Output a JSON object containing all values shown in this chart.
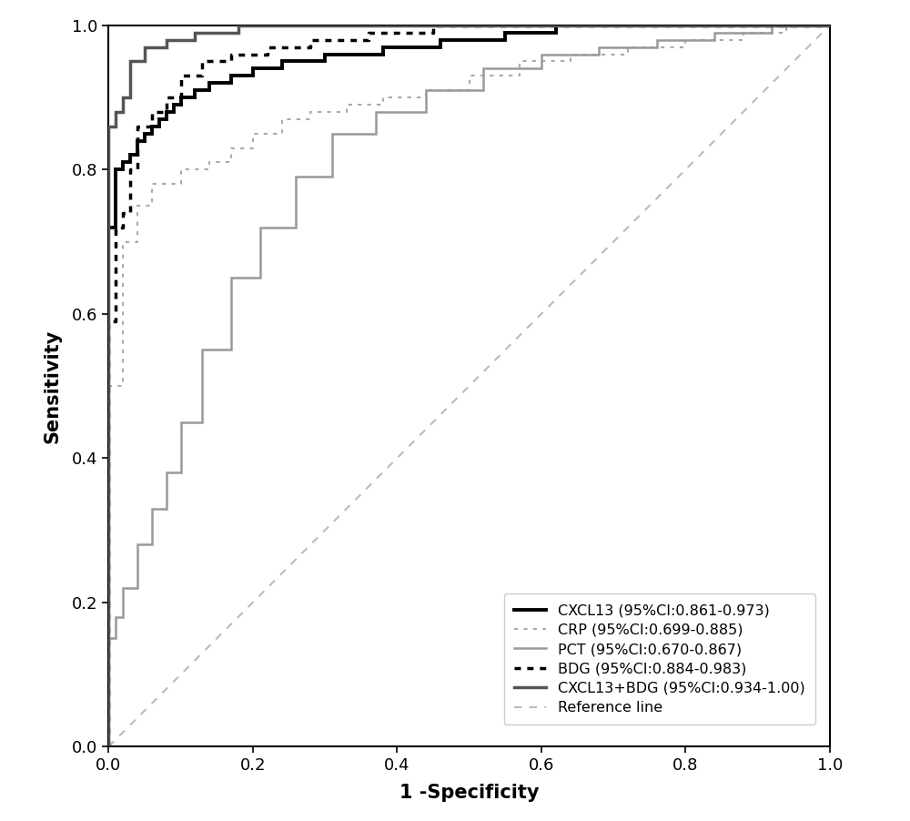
{
  "xlabel": "1 -Specificity",
  "ylabel": "Sensitivity",
  "xlim": [
    0.0,
    1.0
  ],
  "ylim": [
    0.0,
    1.0
  ],
  "xticks": [
    0.0,
    0.2,
    0.4,
    0.6,
    0.8,
    1.0
  ],
  "yticks": [
    0.0,
    0.2,
    0.4,
    0.6,
    0.8,
    1.0
  ],
  "xlabel_fontsize": 15,
  "ylabel_fontsize": 15,
  "tick_fontsize": 13,
  "legend_fontsize": 11.5,
  "background_color": "#ffffff",
  "curves": {
    "CXCL13": {
      "label": "CXCL13 (95%CI:0.861-0.973)",
      "color": "#000000",
      "linewidth": 2.8,
      "linestyle": "solid",
      "x": [
        0.0,
        0.0,
        0.01,
        0.01,
        0.02,
        0.02,
        0.03,
        0.03,
        0.04,
        0.04,
        0.05,
        0.05,
        0.06,
        0.06,
        0.07,
        0.07,
        0.08,
        0.08,
        0.09,
        0.09,
        0.1,
        0.1,
        0.12,
        0.12,
        0.14,
        0.14,
        0.17,
        0.17,
        0.2,
        0.2,
        0.24,
        0.24,
        0.3,
        0.3,
        0.38,
        0.38,
        0.46,
        0.46,
        0.55,
        0.55,
        0.62,
        0.62,
        0.7,
        0.7,
        0.8,
        0.8,
        0.9,
        0.9,
        1.0
      ],
      "y": [
        0.0,
        0.72,
        0.72,
        0.8,
        0.8,
        0.81,
        0.81,
        0.82,
        0.82,
        0.84,
        0.84,
        0.85,
        0.85,
        0.86,
        0.86,
        0.87,
        0.87,
        0.88,
        0.88,
        0.89,
        0.89,
        0.9,
        0.9,
        0.91,
        0.91,
        0.92,
        0.92,
        0.93,
        0.93,
        0.94,
        0.94,
        0.95,
        0.95,
        0.96,
        0.96,
        0.97,
        0.97,
        0.98,
        0.98,
        0.99,
        0.99,
        1.0,
        1.0,
        1.0,
        1.0,
        1.0,
        1.0,
        1.0,
        1.0
      ]
    },
    "CRP": {
      "label": "CRP (95%CI:0.699-0.885)",
      "color": "#aaaaaa",
      "linewidth": 1.5,
      "linestyle": "dotted",
      "x": [
        0.0,
        0.0,
        0.02,
        0.02,
        0.04,
        0.04,
        0.06,
        0.06,
        0.1,
        0.1,
        0.14,
        0.14,
        0.17,
        0.17,
        0.2,
        0.2,
        0.24,
        0.24,
        0.28,
        0.28,
        0.33,
        0.33,
        0.38,
        0.38,
        0.44,
        0.44,
        0.5,
        0.5,
        0.57,
        0.57,
        0.64,
        0.64,
        0.72,
        0.72,
        0.8,
        0.8,
        0.88,
        0.88,
        0.94,
        0.94,
        1.0
      ],
      "y": [
        0.0,
        0.5,
        0.5,
        0.7,
        0.7,
        0.75,
        0.75,
        0.78,
        0.78,
        0.8,
        0.8,
        0.81,
        0.81,
        0.83,
        0.83,
        0.85,
        0.85,
        0.87,
        0.87,
        0.88,
        0.88,
        0.89,
        0.89,
        0.9,
        0.9,
        0.91,
        0.91,
        0.93,
        0.93,
        0.95,
        0.95,
        0.96,
        0.96,
        0.97,
        0.97,
        0.98,
        0.98,
        0.99,
        0.99,
        1.0,
        1.0
      ]
    },
    "PCT": {
      "label": "PCT (95%CI:0.670-0.867)",
      "color": "#999999",
      "linewidth": 1.8,
      "linestyle": "solid",
      "x": [
        0.0,
        0.0,
        0.01,
        0.01,
        0.02,
        0.02,
        0.04,
        0.04,
        0.06,
        0.06,
        0.08,
        0.08,
        0.1,
        0.1,
        0.13,
        0.13,
        0.17,
        0.17,
        0.21,
        0.21,
        0.26,
        0.26,
        0.31,
        0.31,
        0.37,
        0.37,
        0.44,
        0.44,
        0.52,
        0.52,
        0.6,
        0.6,
        0.68,
        0.68,
        0.76,
        0.76,
        0.84,
        0.84,
        0.92,
        0.92,
        1.0
      ],
      "y": [
        0.0,
        0.15,
        0.15,
        0.18,
        0.18,
        0.22,
        0.22,
        0.28,
        0.28,
        0.33,
        0.33,
        0.38,
        0.38,
        0.45,
        0.45,
        0.55,
        0.55,
        0.65,
        0.65,
        0.72,
        0.72,
        0.79,
        0.79,
        0.85,
        0.85,
        0.88,
        0.88,
        0.91,
        0.91,
        0.94,
        0.94,
        0.96,
        0.96,
        0.97,
        0.97,
        0.98,
        0.98,
        0.99,
        0.99,
        1.0,
        1.0
      ]
    },
    "BDG": {
      "label": "BDG (95%CI:0.884-0.983)",
      "color": "#000000",
      "linewidth": 2.5,
      "linestyle": "densely_dotted",
      "x": [
        0.0,
        0.0,
        0.01,
        0.01,
        0.02,
        0.02,
        0.03,
        0.03,
        0.04,
        0.04,
        0.06,
        0.06,
        0.08,
        0.08,
        0.1,
        0.1,
        0.13,
        0.13,
        0.17,
        0.17,
        0.22,
        0.22,
        0.28,
        0.28,
        0.36,
        0.36,
        0.45,
        0.45,
        0.55,
        0.55,
        0.65,
        0.65,
        0.76,
        0.76,
        0.87,
        0.87,
        0.95,
        0.95,
        1.0
      ],
      "y": [
        0.0,
        0.59,
        0.59,
        0.72,
        0.72,
        0.74,
        0.74,
        0.8,
        0.8,
        0.86,
        0.86,
        0.88,
        0.88,
        0.9,
        0.9,
        0.93,
        0.93,
        0.95,
        0.95,
        0.96,
        0.96,
        0.97,
        0.97,
        0.98,
        0.98,
        0.99,
        0.99,
        1.0,
        1.0,
        1.0,
        1.0,
        1.0,
        1.0,
        1.0,
        1.0,
        1.0,
        1.0,
        1.0,
        1.0
      ]
    },
    "CXCL13_BDG": {
      "label": "CXCL13+BDG (95%CI:0.934-1.00)",
      "color": "#555555",
      "linewidth": 2.5,
      "linestyle": "solid",
      "x": [
        0.0,
        0.0,
        0.01,
        0.01,
        0.02,
        0.02,
        0.03,
        0.03,
        0.05,
        0.05,
        0.08,
        0.08,
        0.12,
        0.12,
        0.18,
        0.18,
        0.25,
        0.25,
        0.35,
        0.35,
        0.5,
        0.5,
        0.65,
        0.65,
        0.8,
        0.8,
        0.92,
        0.92,
        1.0
      ],
      "y": [
        0.0,
        0.86,
        0.86,
        0.88,
        0.88,
        0.9,
        0.9,
        0.95,
        0.95,
        0.97,
        0.97,
        0.98,
        0.98,
        0.99,
        0.99,
        1.0,
        1.0,
        1.0,
        1.0,
        1.0,
        1.0,
        1.0,
        1.0,
        1.0,
        1.0,
        1.0,
        1.0,
        1.0,
        1.0
      ]
    }
  },
  "reference_line": {
    "label": "Reference line",
    "color": "#bbbbbb",
    "linewidth": 1.5,
    "linestyle": "dotted"
  }
}
